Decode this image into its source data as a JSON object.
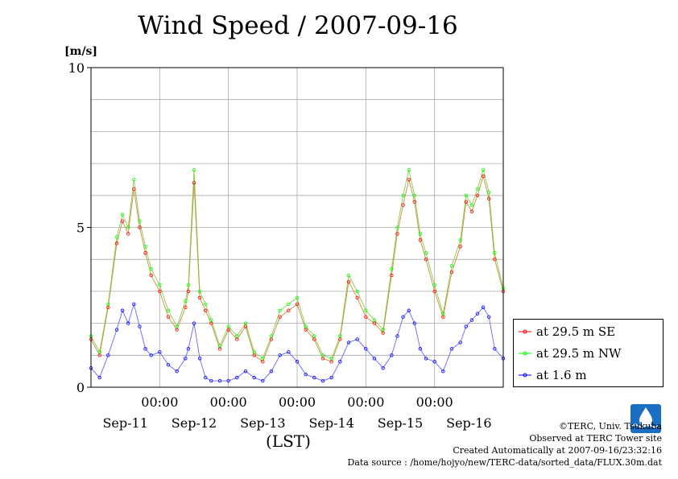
{
  "title": "Wind Speed / 2007-09-16",
  "y_unit": "[m/s]",
  "x_axis_label": "(LST)",
  "legend": [
    {
      "label": "at 29.5 m SE",
      "color": "#ff0000"
    },
    {
      "label": "at 29.5 m NW",
      "color": "#00ff00"
    },
    {
      "label": "at 1.6 m",
      "color": "#0000ff"
    }
  ],
  "credits": {
    "copyright": "©TERC, Univ. Tsukuba",
    "observed": "Observed at TERC Tower site",
    "created": "Created Automatically at 2007-09-16/23:32:16",
    "source": "Data source : /home/hojyo/new/TERC-data/sorted_data/FLUX.30m.dat"
  },
  "logo_text": "TERC",
  "chart_data": {
    "type": "line",
    "title": "Wind Speed / 2007-09-16",
    "ylabel": "[m/s]",
    "xlabel": "(LST)",
    "ylim": [
      0,
      10
    ],
    "xlim": [
      0,
      144
    ],
    "y_ticks": [
      {
        "value": 0,
        "label": "0"
      },
      {
        "value": 5,
        "label": "5"
      },
      {
        "value": 10,
        "label": "10"
      }
    ],
    "x_time_ticks": [
      {
        "value": 24,
        "label": "00:00"
      },
      {
        "value": 48,
        "label": "00:00"
      },
      {
        "value": 72,
        "label": "00:00"
      },
      {
        "value": 96,
        "label": "00:00"
      },
      {
        "value": 120,
        "label": "00:00"
      }
    ],
    "x_day_ticks": [
      {
        "value": 12,
        "label": "Sep-11"
      },
      {
        "value": 36,
        "label": "Sep-12"
      },
      {
        "value": 60,
        "label": "Sep-13"
      },
      {
        "value": 84,
        "label": "Sep-14"
      },
      {
        "value": 108,
        "label": "Sep-15"
      },
      {
        "value": 132,
        "label": "Sep-16"
      }
    ],
    "grid": true,
    "legend_position": "right",
    "x_hours": [
      0,
      3,
      6,
      9,
      11,
      13,
      15,
      17,
      19,
      21,
      24,
      27,
      30,
      33,
      34,
      36,
      38,
      40,
      42,
      45,
      48,
      51,
      54,
      57,
      60,
      63,
      66,
      69,
      72,
      75,
      78,
      81,
      84,
      87,
      90,
      93,
      96,
      99,
      102,
      105,
      107,
      109,
      111,
      113,
      115,
      117,
      120,
      123,
      126,
      129,
      131,
      133,
      135,
      137,
      139,
      141,
      144
    ],
    "series": [
      {
        "name": "at 29.5 m SE",
        "color": "#ff0000",
        "values": [
          1.5,
          1.0,
          2.5,
          4.5,
          5.2,
          4.8,
          6.2,
          5.0,
          4.2,
          3.5,
          3.0,
          2.2,
          1.8,
          2.5,
          3.0,
          6.4,
          2.8,
          2.4,
          2.0,
          1.2,
          1.8,
          1.5,
          1.9,
          1.0,
          0.8,
          1.5,
          2.2,
          2.4,
          2.6,
          1.8,
          1.5,
          0.9,
          0.8,
          1.5,
          3.3,
          2.8,
          2.2,
          2.0,
          1.7,
          3.5,
          4.8,
          5.7,
          6.5,
          5.8,
          4.6,
          4.0,
          3.0,
          2.2,
          3.6,
          4.4,
          5.8,
          5.5,
          6.0,
          6.6,
          5.9,
          4.0,
          3.0
        ]
      },
      {
        "name": "at 29.5 m NW",
        "color": "#00ff00",
        "values": [
          1.6,
          1.1,
          2.6,
          4.7,
          5.4,
          5.0,
          6.5,
          5.2,
          4.4,
          3.7,
          3.2,
          2.4,
          1.9,
          2.7,
          3.2,
          6.8,
          3.0,
          2.6,
          2.1,
          1.3,
          1.9,
          1.6,
          2.0,
          1.1,
          0.9,
          1.6,
          2.4,
          2.6,
          2.8,
          1.9,
          1.6,
          1.0,
          0.9,
          1.6,
          3.5,
          3.0,
          2.4,
          2.1,
          1.8,
          3.7,
          5.0,
          6.0,
          6.8,
          6.0,
          4.8,
          4.2,
          3.2,
          2.3,
          3.8,
          4.6,
          6.0,
          5.7,
          6.2,
          6.8,
          6.1,
          4.2,
          3.1
        ]
      },
      {
        "name": "at 1.6 m",
        "color": "#0000ff",
        "values": [
          0.6,
          0.3,
          1.0,
          1.8,
          2.4,
          2.0,
          2.6,
          1.9,
          1.2,
          1.0,
          1.1,
          0.7,
          0.5,
          0.9,
          1.2,
          2.0,
          0.9,
          0.3,
          0.2,
          0.2,
          0.2,
          0.3,
          0.5,
          0.3,
          0.2,
          0.5,
          1.0,
          1.1,
          0.8,
          0.4,
          0.3,
          0.2,
          0.3,
          0.8,
          1.4,
          1.5,
          1.2,
          0.9,
          0.6,
          1.0,
          1.6,
          2.2,
          2.4,
          2.0,
          1.2,
          0.9,
          0.8,
          0.5,
          1.2,
          1.4,
          1.9,
          2.1,
          2.3,
          2.5,
          2.2,
          1.2,
          0.9
        ]
      }
    ]
  }
}
